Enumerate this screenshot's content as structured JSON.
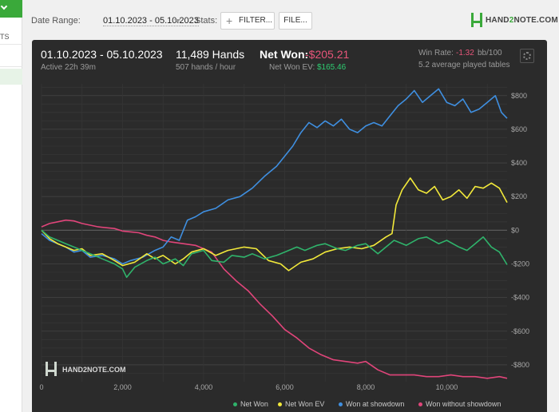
{
  "sidebar": {
    "item_label": "TS"
  },
  "toolbar": {
    "date_range_label": "Date Range:",
    "date_range_value": "01.10.2023 - 05.10.2023",
    "stats_label": "Stats:",
    "filter_label": "FILTER...",
    "file_label": "FILE...",
    "logo_text_a": "HAND",
    "logo_text_2": "2",
    "logo_text_b": "NOTE.COM"
  },
  "summary": {
    "range": "01.10.2023 - 05.10.2023",
    "active": "Active 22h 39m",
    "hands": "11,489 Hands",
    "hands_rate": "507 hands / hour",
    "net_won_label": "Net Won:",
    "net_won_value": "-$205.21",
    "net_won_ev_label": "Net Won  EV:",
    "net_won_ev_value": "$165.46",
    "win_rate_label": "Win Rate:",
    "win_rate_value": "-1.32",
    "win_rate_unit": "bb/100",
    "tables": "5.2 average played tables"
  },
  "colors": {
    "net_won": "#2fb36b",
    "net_won_ev": "#f2e93a",
    "won_at_showdown": "#3f8fe0",
    "won_without_showdown": "#e0457a",
    "negative": "#e8557a",
    "positive": "#2ecc71",
    "panel_bg": "#2b2b2b"
  },
  "icons": {
    "settings": "gear-icon",
    "filter": "plus-icon",
    "date_range": "caret-down-icon"
  },
  "watermark": "HAND2NOTE.COM",
  "chart_data": {
    "type": "line",
    "x_ticks": [
      "0",
      "2,000",
      "4,000",
      "6,000",
      "8,000",
      "10,000"
    ],
    "y_ticks": [
      "$800",
      "$600",
      "$400",
      "$200",
      "$0",
      "-$200",
      "-$400",
      "-$600",
      "-$800"
    ],
    "xlim": [
      0,
      11489
    ],
    "ylim": [
      -900,
      870
    ],
    "grid": true,
    "legend_position": "bottom-right",
    "series": [
      {
        "name": "Net Won",
        "color": "#2fb36b",
        "points": [
          [
            0,
            0
          ],
          [
            200,
            -40
          ],
          [
            400,
            -60
          ],
          [
            600,
            -80
          ],
          [
            800,
            -100
          ],
          [
            1000,
            -120
          ],
          [
            1200,
            -140
          ],
          [
            1500,
            -170
          ],
          [
            1800,
            -200
          ],
          [
            2000,
            -230
          ],
          [
            2100,
            -280
          ],
          [
            2300,
            -220
          ],
          [
            2600,
            -180
          ],
          [
            2800,
            -160
          ],
          [
            3000,
            -200
          ],
          [
            3300,
            -170
          ],
          [
            3500,
            -210
          ],
          [
            3700,
            -140
          ],
          [
            4000,
            -120
          ],
          [
            4200,
            -180
          ],
          [
            4500,
            -190
          ],
          [
            4700,
            -150
          ],
          [
            5000,
            -160
          ],
          [
            5200,
            -140
          ],
          [
            5500,
            -170
          ],
          [
            5800,
            -150
          ],
          [
            6000,
            -130
          ],
          [
            6300,
            -100
          ],
          [
            6500,
            -120
          ],
          [
            6800,
            -90
          ],
          [
            7000,
            -80
          ],
          [
            7300,
            -110
          ],
          [
            7500,
            -120
          ],
          [
            7800,
            -90
          ],
          [
            8000,
            -80
          ],
          [
            8300,
            -140
          ],
          [
            8500,
            -100
          ],
          [
            8700,
            -60
          ],
          [
            9000,
            -90
          ],
          [
            9300,
            -50
          ],
          [
            9500,
            -40
          ],
          [
            9800,
            -80
          ],
          [
            10000,
            -60
          ],
          [
            10300,
            -100
          ],
          [
            10500,
            -120
          ],
          [
            10700,
            -80
          ],
          [
            10900,
            -40
          ],
          [
            11100,
            -100
          ],
          [
            11300,
            -130
          ],
          [
            11489,
            -205
          ]
        ]
      },
      {
        "name": "Net Won  EV",
        "color": "#f2e93a",
        "points": [
          [
            0,
            0
          ],
          [
            200,
            -50
          ],
          [
            400,
            -80
          ],
          [
            600,
            -100
          ],
          [
            800,
            -120
          ],
          [
            1000,
            -110
          ],
          [
            1200,
            -150
          ],
          [
            1500,
            -140
          ],
          [
            1800,
            -180
          ],
          [
            2000,
            -210
          ],
          [
            2300,
            -190
          ],
          [
            2600,
            -140
          ],
          [
            2800,
            -170
          ],
          [
            3000,
            -150
          ],
          [
            3300,
            -200
          ],
          [
            3500,
            -170
          ],
          [
            3700,
            -130
          ],
          [
            4000,
            -110
          ],
          [
            4300,
            -150
          ],
          [
            4600,
            -120
          ],
          [
            5000,
            -100
          ],
          [
            5300,
            -110
          ],
          [
            5600,
            -180
          ],
          [
            5900,
            -200
          ],
          [
            6100,
            -240
          ],
          [
            6400,
            -190
          ],
          [
            6700,
            -170
          ],
          [
            7000,
            -130
          ],
          [
            7300,
            -110
          ],
          [
            7600,
            -100
          ],
          [
            7900,
            -110
          ],
          [
            8200,
            -90
          ],
          [
            8500,
            -40
          ],
          [
            8650,
            -20
          ],
          [
            8750,
            150
          ],
          [
            8900,
            240
          ],
          [
            9100,
            310
          ],
          [
            9300,
            240
          ],
          [
            9500,
            220
          ],
          [
            9700,
            260
          ],
          [
            9900,
            180
          ],
          [
            10100,
            200
          ],
          [
            10300,
            240
          ],
          [
            10500,
            190
          ],
          [
            10700,
            260
          ],
          [
            10900,
            250
          ],
          [
            11100,
            280
          ],
          [
            11300,
            250
          ],
          [
            11489,
            165
          ]
        ]
      },
      {
        "name": "Won at showdown",
        "color": "#3f8fe0",
        "points": [
          [
            0,
            -20
          ],
          [
            200,
            -60
          ],
          [
            400,
            -80
          ],
          [
            600,
            -100
          ],
          [
            800,
            -130
          ],
          [
            1000,
            -120
          ],
          [
            1200,
            -160
          ],
          [
            1500,
            -150
          ],
          [
            1800,
            -170
          ],
          [
            2000,
            -200
          ],
          [
            2200,
            -180
          ],
          [
            2500,
            -160
          ],
          [
            2800,
            -120
          ],
          [
            3000,
            -100
          ],
          [
            3200,
            -40
          ],
          [
            3400,
            -60
          ],
          [
            3600,
            60
          ],
          [
            3800,
            80
          ],
          [
            4000,
            110
          ],
          [
            4300,
            130
          ],
          [
            4600,
            180
          ],
          [
            4900,
            200
          ],
          [
            5200,
            250
          ],
          [
            5500,
            320
          ],
          [
            5800,
            380
          ],
          [
            6000,
            440
          ],
          [
            6200,
            500
          ],
          [
            6400,
            580
          ],
          [
            6600,
            640
          ],
          [
            6800,
            610
          ],
          [
            7000,
            650
          ],
          [
            7200,
            620
          ],
          [
            7400,
            660
          ],
          [
            7600,
            600
          ],
          [
            7800,
            580
          ],
          [
            8000,
            620
          ],
          [
            8200,
            640
          ],
          [
            8400,
            620
          ],
          [
            8600,
            680
          ],
          [
            8800,
            740
          ],
          [
            9000,
            780
          ],
          [
            9200,
            830
          ],
          [
            9400,
            760
          ],
          [
            9600,
            800
          ],
          [
            9800,
            840
          ],
          [
            10000,
            760
          ],
          [
            10200,
            740
          ],
          [
            10400,
            780
          ],
          [
            10600,
            700
          ],
          [
            10800,
            720
          ],
          [
            11000,
            760
          ],
          [
            11200,
            800
          ],
          [
            11350,
            700
          ],
          [
            11489,
            665
          ]
        ]
      },
      {
        "name": "Won without showdown",
        "color": "#e0457a",
        "points": [
          [
            0,
            20
          ],
          [
            200,
            40
          ],
          [
            400,
            50
          ],
          [
            600,
            60
          ],
          [
            800,
            55
          ],
          [
            1000,
            40
          ],
          [
            1200,
            30
          ],
          [
            1400,
            20
          ],
          [
            1600,
            15
          ],
          [
            1800,
            10
          ],
          [
            2000,
            -5
          ],
          [
            2200,
            -10
          ],
          [
            2400,
            -15
          ],
          [
            2600,
            -30
          ],
          [
            2800,
            -40
          ],
          [
            3000,
            -60
          ],
          [
            3200,
            -70
          ],
          [
            3500,
            -80
          ],
          [
            3800,
            -90
          ],
          [
            4000,
            -110
          ],
          [
            4200,
            -130
          ],
          [
            4500,
            -230
          ],
          [
            4800,
            -300
          ],
          [
            5100,
            -360
          ],
          [
            5400,
            -440
          ],
          [
            5700,
            -510
          ],
          [
            6000,
            -590
          ],
          [
            6300,
            -640
          ],
          [
            6600,
            -700
          ],
          [
            6900,
            -740
          ],
          [
            7200,
            -770
          ],
          [
            7500,
            -780
          ],
          [
            7800,
            -790
          ],
          [
            8000,
            -780
          ],
          [
            8300,
            -830
          ],
          [
            8600,
            -860
          ],
          [
            8900,
            -860
          ],
          [
            9200,
            -860
          ],
          [
            9500,
            -870
          ],
          [
            9800,
            -870
          ],
          [
            10100,
            -860
          ],
          [
            10400,
            -870
          ],
          [
            10700,
            -870
          ],
          [
            11000,
            -880
          ],
          [
            11300,
            -870
          ],
          [
            11489,
            -880
          ]
        ]
      }
    ]
  }
}
